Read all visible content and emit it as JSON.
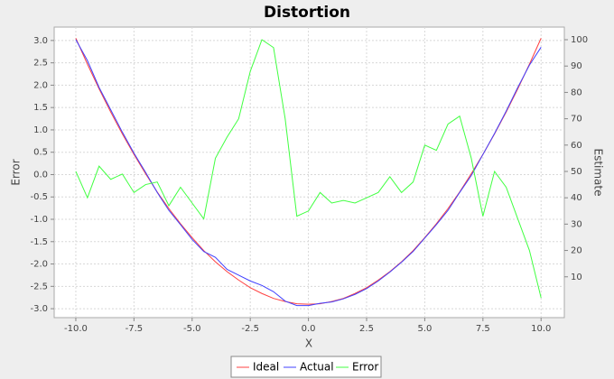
{
  "chart_data": {
    "type": "line",
    "title": "Distortion",
    "x_label": "X",
    "y_label": "Error",
    "y2_label": "Estimate",
    "x": [
      -10,
      -9.5,
      -9,
      -8.5,
      -8,
      -7.5,
      -7,
      -6.5,
      -6,
      -5.5,
      -5,
      -4.5,
      -4,
      -3.5,
      -3,
      -2.5,
      -2,
      -1.5,
      -1,
      -0.5,
      0,
      0.5,
      1,
      1.5,
      2,
      2.5,
      3,
      3.5,
      4,
      4.5,
      5,
      5.5,
      6,
      6.5,
      7,
      7.5,
      8,
      8.5,
      9,
      9.5,
      10
    ],
    "series": [
      {
        "name": "Ideal",
        "color": "#ff4040",
        "values": [
          3.05,
          2.47,
          1.92,
          1.4,
          0.91,
          0.45,
          0.02,
          -0.39,
          -0.76,
          -1.1,
          -1.41,
          -1.7,
          -1.95,
          -2.17,
          -2.36,
          -2.53,
          -2.66,
          -2.77,
          -2.84,
          -2.89,
          -2.9,
          -2.89,
          -2.84,
          -2.77,
          -2.66,
          -2.53,
          -2.36,
          -2.17,
          -1.95,
          -1.7,
          -1.41,
          -1.1,
          -0.76,
          -0.39,
          0.02,
          0.45,
          0.91,
          1.4,
          1.92,
          2.47,
          3.05
        ]
      },
      {
        "name": "Actual",
        "color": "#4040ff",
        "values": [
          3.02,
          2.55,
          1.95,
          1.45,
          0.95,
          0.48,
          0.05,
          -0.4,
          -0.8,
          -1.12,
          -1.45,
          -1.72,
          -1.85,
          -2.12,
          -2.25,
          -2.38,
          -2.48,
          -2.62,
          -2.83,
          -2.93,
          -2.93,
          -2.88,
          -2.85,
          -2.78,
          -2.68,
          -2.55,
          -2.38,
          -2.18,
          -1.96,
          -1.72,
          -1.42,
          -1.12,
          -0.8,
          -0.4,
          -0.02,
          0.45,
          0.92,
          1.42,
          1.95,
          2.45,
          2.85
        ]
      },
      {
        "name": "Error",
        "color": "#40ff40",
        "axis": "y2",
        "values": [
          50,
          40,
          52,
          47,
          49,
          42,
          45,
          46,
          37,
          44,
          38,
          32,
          55,
          63,
          70,
          88,
          100,
          97,
          70,
          33,
          35,
          42,
          38,
          39,
          38,
          40,
          42,
          48,
          42,
          46,
          60,
          58,
          68,
          71,
          55,
          33,
          50,
          44,
          32,
          20,
          2
        ]
      }
    ],
    "xlim": [
      -10.93,
      11.0
    ],
    "xticks": [
      {
        "value": -10,
        "label": "-10.0"
      },
      -7.5,
      {
        "value": -5,
        "label": "-5.0"
      },
      -2.5,
      {
        "value": 0,
        "label": "0.0"
      },
      2.5,
      {
        "value": 5,
        "label": "5.0"
      },
      7.5,
      {
        "value": 10,
        "label": "10.0"
      }
    ],
    "ylim": [
      -3.2,
      3.3
    ],
    "yticks": [
      {
        "value": -3,
        "label": "-3.0"
      },
      -2.5,
      {
        "value": -2,
        "label": "-2.0"
      },
      -1.5,
      {
        "value": -1,
        "label": "-1.0"
      },
      -0.5,
      {
        "value": 0,
        "label": "0.0"
      },
      0.5,
      {
        "value": 1,
        "label": "1.0"
      },
      1.5,
      {
        "value": 2,
        "label": "2.0"
      },
      2.5,
      {
        "value": 3,
        "label": "3.0"
      }
    ],
    "y2lim": [
      -5.5,
      104.8
    ],
    "y2ticks": [
      10,
      20,
      30,
      40,
      50,
      60,
      70,
      80,
      90,
      100
    ],
    "grid": true,
    "legend": "bottom"
  }
}
